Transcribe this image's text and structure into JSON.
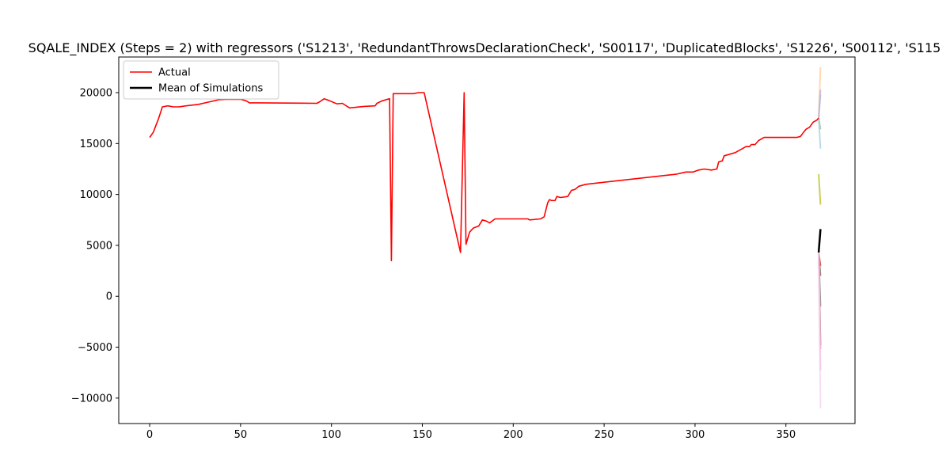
{
  "chart_data": {
    "type": "line",
    "title": "SQALE_INDEX (Steps = 2) with regressors ('S1213', 'RedundantThrowsDeclarationCheck', 'S00117', 'DuplicatedBlocks', 'S1226', 'S00112', 'S115",
    "xlabel": "",
    "ylabel": "",
    "xlim": [
      -17,
      388
    ],
    "ylim": [
      -12500,
      23500
    ],
    "xticks": [
      0,
      50,
      100,
      150,
      200,
      250,
      300,
      350
    ],
    "yticks": [
      -10000,
      -5000,
      0,
      5000,
      10000,
      15000,
      20000
    ],
    "ytick_labels": [
      "−10000",
      "−5000",
      "0",
      "5000",
      "10000",
      "15000",
      "20000"
    ],
    "grid": false,
    "legend": {
      "placement": "top-left",
      "entries": [
        {
          "label": "Actual",
          "color": "#ff0000"
        },
        {
          "label": "Mean of Simulations",
          "color": "#000000"
        }
      ]
    },
    "series": [
      {
        "name": "Actual",
        "color": "#ff0000",
        "points": [
          [
            0,
            15600
          ],
          [
            2,
            16100
          ],
          [
            5,
            17500
          ],
          [
            7,
            18600
          ],
          [
            10,
            18700
          ],
          [
            13,
            18600
          ],
          [
            16,
            18600
          ],
          [
            20,
            18700
          ],
          [
            27,
            18850
          ],
          [
            33,
            19100
          ],
          [
            38,
            19300
          ],
          [
            42,
            19350
          ],
          [
            50,
            19350
          ],
          [
            53,
            19200
          ],
          [
            55,
            19000
          ],
          [
            60,
            19000
          ],
          [
            92,
            18950
          ],
          [
            94,
            19150
          ],
          [
            96,
            19400
          ],
          [
            99,
            19200
          ],
          [
            103,
            18900
          ],
          [
            106,
            18950
          ],
          [
            110,
            18500
          ],
          [
            118,
            18650
          ],
          [
            124,
            18700
          ],
          [
            125,
            18950
          ],
          [
            128,
            19200
          ],
          [
            132,
            19400
          ],
          [
            133,
            3500
          ],
          [
            134,
            19900
          ],
          [
            140,
            19900
          ],
          [
            145,
            19900
          ],
          [
            148,
            20000
          ],
          [
            151,
            20000
          ],
          [
            171,
            4300
          ],
          [
            173,
            20000
          ],
          [
            174,
            5100
          ],
          [
            176,
            6300
          ],
          [
            178,
            6700
          ],
          [
            181,
            6900
          ],
          [
            183,
            7500
          ],
          [
            185,
            7400
          ],
          [
            187,
            7200
          ],
          [
            190,
            7600
          ],
          [
            200,
            7600
          ],
          [
            208,
            7600
          ],
          [
            209,
            7500
          ],
          [
            215,
            7600
          ],
          [
            217,
            7800
          ],
          [
            219,
            9200
          ],
          [
            220,
            9500
          ],
          [
            221,
            9400
          ],
          [
            223,
            9400
          ],
          [
            224,
            9800
          ],
          [
            226,
            9700
          ],
          [
            230,
            9800
          ],
          [
            232,
            10400
          ],
          [
            234,
            10500
          ],
          [
            236,
            10800
          ],
          [
            240,
            11000
          ],
          [
            290,
            12000
          ],
          [
            295,
            12200
          ],
          [
            299,
            12200
          ],
          [
            302,
            12400
          ],
          [
            305,
            12500
          ],
          [
            309,
            12400
          ],
          [
            312,
            12500
          ],
          [
            313,
            13200
          ],
          [
            315,
            13300
          ],
          [
            316,
            13800
          ],
          [
            320,
            14000
          ],
          [
            322,
            14100
          ],
          [
            326,
            14500
          ],
          [
            328,
            14700
          ],
          [
            330,
            14700
          ],
          [
            331,
            14900
          ],
          [
            333,
            14900
          ],
          [
            335,
            15300
          ],
          [
            338,
            15600
          ],
          [
            356,
            15600
          ],
          [
            358,
            15700
          ],
          [
            361,
            16400
          ],
          [
            363,
            16600
          ],
          [
            365,
            17100
          ],
          [
            367,
            17300
          ],
          [
            368,
            17500
          ]
        ]
      },
      {
        "name": "Mean of Simulations",
        "color": "#000000",
        "points": [
          [
            368,
            4300
          ],
          [
            369,
            6600
          ]
        ]
      }
    ],
    "simulations": [
      {
        "color": "#ffcc99",
        "values": [
          [
            368,
            17500
          ],
          [
            369,
            22500
          ]
        ]
      },
      {
        "color": "#9ecae1",
        "values": [
          [
            368,
            17500
          ],
          [
            369,
            19800
          ]
        ]
      },
      {
        "color": "#c5b0d5",
        "values": [
          [
            368,
            17500
          ],
          [
            369,
            20300
          ]
        ]
      },
      {
        "color": "#8fbc8f",
        "values": [
          [
            368,
            17500
          ],
          [
            369,
            16400
          ]
        ]
      },
      {
        "color": "#a6cee3",
        "values": [
          [
            368,
            17500
          ],
          [
            369,
            14500
          ]
        ]
      },
      {
        "color": "#bcbd22",
        "values": [
          [
            368,
            12000
          ],
          [
            369,
            9000
          ]
        ]
      },
      {
        "color": "#d62728",
        "values": [
          [
            368,
            4300
          ],
          [
            369,
            3000
          ]
        ]
      },
      {
        "color": "#8c564b",
        "values": [
          [
            368,
            4300
          ],
          [
            369,
            2000
          ]
        ]
      },
      {
        "color": "#7f7f7f",
        "values": [
          [
            368,
            4300
          ],
          [
            369,
            -1000
          ]
        ]
      },
      {
        "color": "#6b8e23",
        "values": [
          [
            368,
            4300
          ],
          [
            369,
            -4800
          ]
        ]
      },
      {
        "color": "#e377c2",
        "values": [
          [
            368,
            4300
          ],
          [
            369,
            -5200
          ]
        ]
      },
      {
        "color": "#f7b6d2",
        "values": [
          [
            368,
            4300
          ],
          [
            369,
            -7300
          ]
        ]
      },
      {
        "color": "#f3d1f0",
        "values": [
          [
            368,
            4300
          ],
          [
            369,
            -11000
          ]
        ]
      }
    ]
  }
}
